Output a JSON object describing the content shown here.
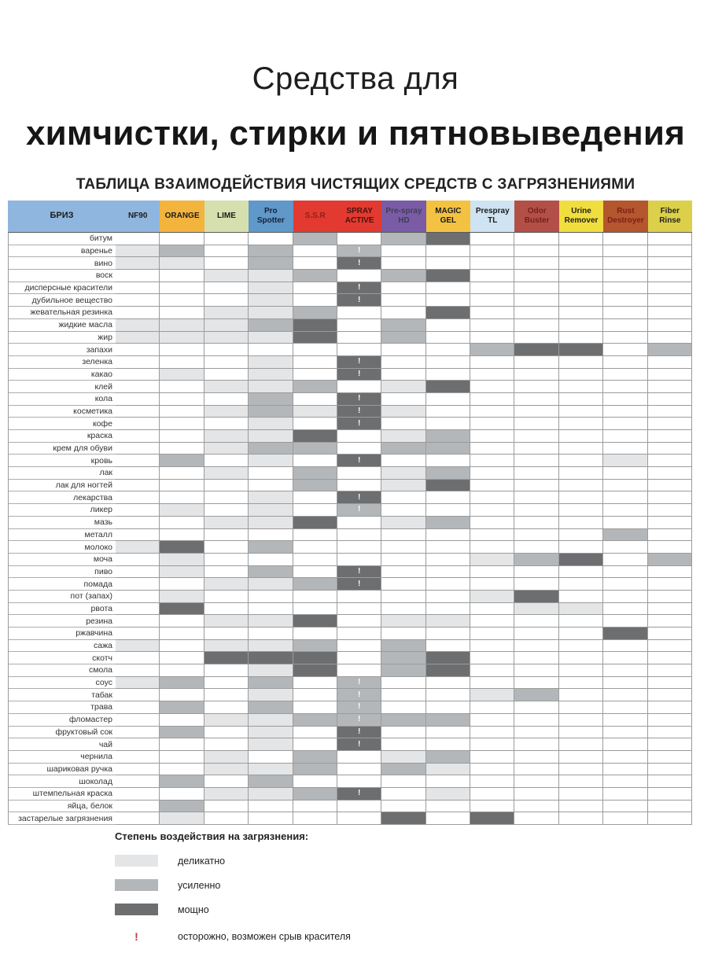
{
  "page": {
    "title_line1": "Средства для",
    "title_line2": "химчистки, стирки и пятновыведения",
    "subtitle": "ТАБЛИЦА ВЗАИМОДЕЙСТВИЯ ЧИСТЯЩИХ СРЕДСТВ С ЗАГРЯЗНЕНИЯМИ"
  },
  "colors": {
    "light": "#e4e5e7",
    "medium": "#b4b7b9",
    "dark": "#6d6e70",
    "warning_red": "#c23b2e",
    "grid": "#9b9b9b"
  },
  "chart_data": {
    "type": "heatmap",
    "title": "ТАБЛИЦА ВЗАИМОДЕЙСТВИЯ ЧИСТЯЩИХ СРЕДСТВ С ЗАГРЯЗНЕНИЯМИ",
    "corner": {
      "label": "БРИЗ",
      "bg": "#8fb6de",
      "fg": "#1b1b1b"
    },
    "value_legend": {
      "L": "деликатно",
      "M": "усиленно",
      "D": "мощно",
      "!": "осторожно, возможен срыв красителя"
    },
    "columns": [
      {
        "label": "NF90",
        "bg": "#8fb6de",
        "fg": "#1b1b1b"
      },
      {
        "label": "ORANGE",
        "bg": "#f2b43d",
        "fg": "#1b1b1b"
      },
      {
        "label": "LIME",
        "bg": "#d6e0ae",
        "fg": "#1b1b1b"
      },
      {
        "label": "Pro Spotter",
        "bg": "#5f98c9",
        "fg": "#14213a"
      },
      {
        "label": "S.S.R",
        "bg": "#e23a30",
        "fg": "#8e1f16"
      },
      {
        "label": "SPRAY ACTIVE",
        "bg": "#e23a30",
        "fg": "#4a120c"
      },
      {
        "label": "Pre-spray HD",
        "bg": "#7a5ba5",
        "fg": "#3f3f55"
      },
      {
        "label": "MAGIC GEL",
        "bg": "#f4c242",
        "fg": "#1b1b1b"
      },
      {
        "label": "Prespray TL",
        "bg": "#cfe3f2",
        "fg": "#1b1b1b"
      },
      {
        "label": "Odor Buster",
        "bg": "#b25048",
        "fg": "#76201a"
      },
      {
        "label": "Urine Remover",
        "bg": "#f0de3e",
        "fg": "#23231a"
      },
      {
        "label": "Rust Destroyer",
        "bg": "#b4562e",
        "fg": "#7c2014"
      },
      {
        "label": "Fiber Rinse",
        "bg": "#dcd04a",
        "fg": "#23231a"
      }
    ],
    "row_labels": [
      "битум",
      "варенье",
      "вино",
      "воск",
      "дисперсные красители",
      "дубильное вещество",
      "жевательная резинка",
      "жидкие масла",
      "жир",
      "запахи",
      "зеленка",
      "какао",
      "клей",
      "кола",
      "косметика",
      "кофе",
      "краска",
      "крем для обуви",
      "кровь",
      "лак",
      "лак для ногтей",
      "лекарства",
      "ликер",
      "мазь",
      "металл",
      "молоко",
      "моча",
      "пиво",
      "помада",
      "пот (запах)",
      "рвота",
      "резина",
      "ржавчина",
      "сажа",
      "скотч",
      "смола",
      "соус",
      "табак",
      "трава",
      "фломастер",
      "фруктовый сок",
      "чай",
      "чернила",
      "шариковая ручка",
      "шоколад",
      "штемпельная краска",
      "яйца, белок",
      "застарелые загрязнения"
    ],
    "matrix": [
      [
        "",
        "",
        "",
        "",
        "M",
        "",
        "M",
        "D",
        "",
        "",
        "",
        "",
        ""
      ],
      [
        "L",
        "M",
        "",
        "M",
        "",
        "M!",
        "",
        "",
        "",
        "",
        "",
        "",
        ""
      ],
      [
        "L",
        "L",
        "",
        "M",
        "",
        "D!",
        "",
        "",
        "",
        "",
        "",
        "",
        ""
      ],
      [
        "",
        "",
        "L",
        "L",
        "M",
        "",
        "M",
        "D",
        "",
        "",
        "",
        "",
        ""
      ],
      [
        "",
        "",
        "",
        "L",
        "",
        "D!",
        "",
        "",
        "",
        "",
        "",
        "",
        ""
      ],
      [
        "",
        "",
        "",
        "L",
        "",
        "D!",
        "",
        "",
        "",
        "",
        "",
        "",
        ""
      ],
      [
        "",
        "",
        "L",
        "L",
        "M",
        "",
        "",
        "D",
        "",
        "",
        "",
        "",
        ""
      ],
      [
        "L",
        "L",
        "L",
        "M",
        "D",
        "",
        "M",
        "",
        "",
        "",
        "",
        "",
        ""
      ],
      [
        "L",
        "L",
        "L",
        "L",
        "D",
        "",
        "M",
        "",
        "",
        "",
        "",
        "",
        ""
      ],
      [
        "",
        "",
        "",
        "",
        "",
        "",
        "",
        "",
        "M",
        "D",
        "D",
        "",
        "M"
      ],
      [
        "",
        "",
        "",
        "L",
        "",
        "D!",
        "",
        "",
        "",
        "",
        "",
        "",
        ""
      ],
      [
        "",
        "L",
        "",
        "L",
        "",
        "D!",
        "",
        "",
        "",
        "",
        "",
        "",
        ""
      ],
      [
        "",
        "",
        "L",
        "L",
        "M",
        "",
        "L",
        "D",
        "",
        "",
        "",
        "",
        ""
      ],
      [
        "",
        "",
        "",
        "M",
        "",
        "D!",
        "",
        "",
        "",
        "",
        "",
        "",
        ""
      ],
      [
        "",
        "",
        "L",
        "M",
        "L",
        "D!",
        "L",
        "",
        "",
        "",
        "",
        "",
        ""
      ],
      [
        "",
        "",
        "",
        "L",
        "",
        "D!",
        "",
        "",
        "",
        "",
        "",
        "",
        ""
      ],
      [
        "",
        "",
        "L",
        "L",
        "D",
        "",
        "L",
        "M",
        "",
        "",
        "",
        "",
        ""
      ],
      [
        "",
        "",
        "L",
        "M",
        "M",
        "",
        "M",
        "M",
        "",
        "",
        "",
        "",
        ""
      ],
      [
        "",
        "M",
        "",
        "L",
        "",
        "D!",
        "",
        "",
        "",
        "",
        "",
        "L",
        ""
      ],
      [
        "",
        "",
        "L",
        "",
        "M",
        "",
        "L",
        "M",
        "",
        "",
        "",
        "",
        ""
      ],
      [
        "",
        "",
        "",
        "",
        "M",
        "",
        "L",
        "D",
        "",
        "",
        "",
        "",
        ""
      ],
      [
        "",
        "",
        "",
        "L",
        "",
        "D!",
        "",
        "",
        "",
        "",
        "",
        "",
        ""
      ],
      [
        "",
        "L",
        "",
        "L",
        "",
        "M!",
        "",
        "",
        "",
        "",
        "",
        "",
        ""
      ],
      [
        "",
        "",
        "L",
        "L",
        "D",
        "",
        "L",
        "M",
        "",
        "",
        "",
        "",
        ""
      ],
      [
        "",
        "",
        "",
        "",
        "",
        "",
        "",
        "",
        "",
        "",
        "",
        "M",
        ""
      ],
      [
        "L",
        "D",
        "",
        "M",
        "",
        "",
        "",
        "",
        "",
        "",
        "",
        "",
        ""
      ],
      [
        "",
        "L",
        "",
        "",
        "",
        "",
        "",
        "",
        "L",
        "M",
        "D",
        "",
        "M"
      ],
      [
        "",
        "L",
        "",
        "M",
        "",
        "D!",
        "",
        "",
        "",
        "",
        "",
        "",
        ""
      ],
      [
        "",
        "",
        "L",
        "L",
        "M",
        "D!",
        "",
        "",
        "",
        "",
        "",
        "",
        ""
      ],
      [
        "",
        "L",
        "",
        "",
        "",
        "",
        "",
        "",
        "L",
        "D",
        "",
        "",
        ""
      ],
      [
        "",
        "D",
        "",
        "",
        "",
        "",
        "",
        "",
        "",
        "L",
        "L",
        "",
        ""
      ],
      [
        "",
        "",
        "L",
        "L",
        "D",
        "",
        "L",
        "L",
        "",
        "",
        "",
        "",
        ""
      ],
      [
        "",
        "",
        "",
        "",
        "",
        "",
        "",
        "",
        "",
        "",
        "",
        "D",
        ""
      ],
      [
        "L",
        "",
        "L",
        "L",
        "M",
        "",
        "M",
        "",
        "",
        "",
        "",
        "",
        ""
      ],
      [
        "",
        "",
        "D",
        "D",
        "D",
        "",
        "M",
        "D",
        "",
        "",
        "",
        "",
        ""
      ],
      [
        "",
        "",
        "",
        "L",
        "D",
        "",
        "M",
        "D",
        "",
        "",
        "",
        "",
        ""
      ],
      [
        "L",
        "M",
        "",
        "M",
        "",
        "M!",
        "",
        "",
        "",
        "",
        "",
        "",
        ""
      ],
      [
        "",
        "",
        "",
        "L",
        "",
        "M!",
        "",
        "",
        "L",
        "M",
        "",
        "",
        ""
      ],
      [
        "",
        "M",
        "",
        "M",
        "",
        "M!",
        "",
        "",
        "",
        "",
        "",
        "",
        ""
      ],
      [
        "",
        "",
        "L",
        "L",
        "M",
        "M!",
        "M",
        "M",
        "",
        "",
        "",
        "",
        ""
      ],
      [
        "",
        "M",
        "",
        "L",
        "",
        "D!",
        "",
        "",
        "",
        "",
        "",
        "",
        ""
      ],
      [
        "",
        "",
        "",
        "L",
        "",
        "D!",
        "",
        "",
        "",
        "",
        "",
        "",
        ""
      ],
      [
        "",
        "",
        "L",
        "",
        "M",
        "",
        "L",
        "M",
        "",
        "",
        "",
        "",
        ""
      ],
      [
        "",
        "",
        "L",
        "L",
        "M",
        "",
        "M",
        "L",
        "",
        "",
        "",
        "",
        ""
      ],
      [
        "",
        "M",
        "",
        "M",
        "",
        "",
        "",
        "",
        "",
        "",
        "",
        "",
        ""
      ],
      [
        "",
        "",
        "L",
        "L",
        "M",
        "D!",
        "",
        "L",
        "",
        "",
        "",
        "",
        ""
      ],
      [
        "",
        "M",
        "",
        "",
        "",
        "",
        "",
        "",
        "",
        "",
        "",
        "",
        ""
      ],
      [
        "",
        "L",
        "",
        "",
        "",
        "",
        "D",
        "",
        "D",
        "",
        "",
        "",
        ""
      ]
    ]
  },
  "legend": {
    "title": "Степень воздействия на загрязнения:",
    "items": [
      {
        "code": "L",
        "label": "деликатно"
      },
      {
        "code": "M",
        "label": "усиленно"
      },
      {
        "code": "D",
        "label": "мощно"
      }
    ],
    "warning": {
      "symbol": "!",
      "label": "осторожно, возможен срыв красителя"
    }
  }
}
